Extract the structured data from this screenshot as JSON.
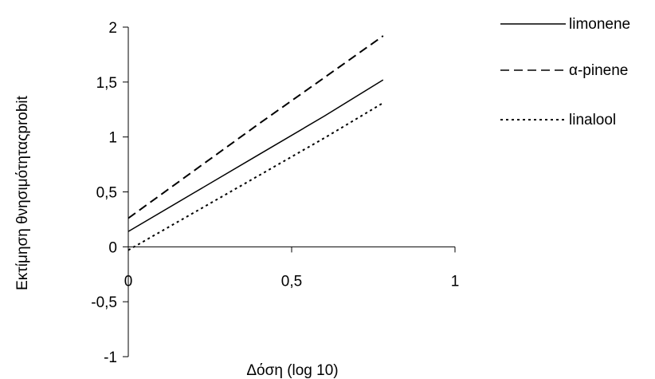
{
  "chart_data": {
    "type": "line",
    "title": "",
    "xlabel": "Δόση (log 10)",
    "ylabel": "Εκτίμηση θνησιμότηταςprobit",
    "xlim": [
      0,
      1
    ],
    "ylim": [
      -1,
      2
    ],
    "x_ticks": [
      0,
      0.5,
      1
    ],
    "x_tick_labels": [
      "0",
      "0,5",
      "1"
    ],
    "y_ticks": [
      -1,
      -0.5,
      0,
      0.5,
      1,
      1.5,
      2
    ],
    "y_tick_labels": [
      "-1",
      "-0,5",
      "0",
      "0,5",
      "1",
      "1,5",
      "2"
    ],
    "grid": false,
    "legend_position": "top-right",
    "series": [
      {
        "name": "limonene",
        "line_style": "solid",
        "color": "#000000",
        "x": [
          0,
          0.2,
          0.4,
          0.6,
          0.78
        ],
        "y": [
          0.14,
          0.49,
          0.84,
          1.19,
          1.52
        ]
      },
      {
        "name": "α-pinene",
        "line_style": "dashed",
        "color": "#000000",
        "x": [
          0,
          0.2,
          0.4,
          0.6,
          0.78
        ],
        "y": [
          0.26,
          0.69,
          1.12,
          1.54,
          1.92
        ]
      },
      {
        "name": "linalool",
        "line_style": "dotted",
        "color": "#000000",
        "x": [
          0,
          0.2,
          0.4,
          0.6,
          0.78
        ],
        "y": [
          -0.03,
          0.31,
          0.65,
          0.99,
          1.31
        ]
      }
    ]
  }
}
